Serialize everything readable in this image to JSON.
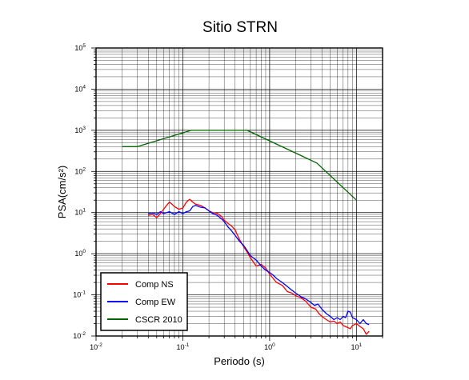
{
  "chart_data": {
    "type": "line",
    "title": "Sitio STRN",
    "xlabel": "Periodo (s)",
    "ylabel": "PSA(cm/s²)",
    "xscale": "log",
    "yscale": "log",
    "xlim": [
      0.01,
      20
    ],
    "ylim": [
      0.01,
      100000
    ],
    "grid": true,
    "legend_position": "bottom-left",
    "x_ticks": [
      {
        "base": "10",
        "exp": "-2"
      },
      {
        "base": "10",
        "exp": "-1"
      },
      {
        "base": "10",
        "exp": "0"
      },
      {
        "base": "10",
        "exp": "1"
      }
    ],
    "y_ticks": [
      {
        "base": "10",
        "exp": "-2"
      },
      {
        "base": "10",
        "exp": "-1"
      },
      {
        "base": "10",
        "exp": "0"
      },
      {
        "base": "10",
        "exp": "1"
      },
      {
        "base": "10",
        "exp": "2"
      },
      {
        "base": "10",
        "exp": "3"
      },
      {
        "base": "10",
        "exp": "4"
      },
      {
        "base": "10",
        "exp": "5"
      }
    ],
    "series": [
      {
        "name": "Comp NS",
        "color": "#ff0000",
        "points": [
          [
            0.04,
            8.5
          ],
          [
            0.045,
            9.0
          ],
          [
            0.05,
            7.5
          ],
          [
            0.055,
            9.5
          ],
          [
            0.06,
            12
          ],
          [
            0.065,
            15
          ],
          [
            0.07,
            18
          ],
          [
            0.075,
            16
          ],
          [
            0.08,
            14
          ],
          [
            0.09,
            12
          ],
          [
            0.1,
            13
          ],
          [
            0.11,
            18
          ],
          [
            0.12,
            21
          ],
          [
            0.13,
            18
          ],
          [
            0.14,
            16
          ],
          [
            0.16,
            15
          ],
          [
            0.18,
            13
          ],
          [
            0.2,
            11
          ],
          [
            0.22,
            10
          ],
          [
            0.25,
            9.5
          ],
          [
            0.28,
            8
          ],
          [
            0.3,
            6.5
          ],
          [
            0.33,
            5.5
          ],
          [
            0.36,
            4.8
          ],
          [
            0.4,
            3.8
          ],
          [
            0.45,
            2.2
          ],
          [
            0.5,
            1.5
          ],
          [
            0.55,
            1.1
          ],
          [
            0.6,
            0.8
          ],
          [
            0.7,
            0.5
          ],
          [
            0.8,
            0.55
          ],
          [
            0.9,
            0.45
          ],
          [
            1.0,
            0.32
          ],
          [
            1.1,
            0.25
          ],
          [
            1.2,
            0.2
          ],
          [
            1.4,
            0.17
          ],
          [
            1.6,
            0.12
          ],
          [
            1.8,
            0.11
          ],
          [
            2.0,
            0.095
          ],
          [
            2.3,
            0.085
          ],
          [
            2.6,
            0.07
          ],
          [
            3.0,
            0.05
          ],
          [
            3.4,
            0.045
          ],
          [
            3.7,
            0.035
          ],
          [
            4.0,
            0.03
          ],
          [
            4.5,
            0.025
          ],
          [
            5.0,
            0.022
          ],
          [
            5.5,
            0.023
          ],
          [
            6.0,
            0.02
          ],
          [
            6.5,
            0.022
          ],
          [
            7.0,
            0.018
          ],
          [
            8.0,
            0.016
          ],
          [
            8.5,
            0.015
          ],
          [
            9.0,
            0.018
          ],
          [
            10.0,
            0.02
          ],
          [
            11.0,
            0.017
          ],
          [
            12.0,
            0.015
          ],
          [
            13.0,
            0.011
          ],
          [
            14.0,
            0.013
          ]
        ]
      },
      {
        "name": "Comp EW",
        "color": "#0000ff",
        "points": [
          [
            0.04,
            9.5
          ],
          [
            0.045,
            9.8
          ],
          [
            0.05,
            9.0
          ],
          [
            0.055,
            10.5
          ],
          [
            0.06,
            9.5
          ],
          [
            0.07,
            10.5
          ],
          [
            0.08,
            9.0
          ],
          [
            0.09,
            10.5
          ],
          [
            0.1,
            9.5
          ],
          [
            0.11,
            10.5
          ],
          [
            0.12,
            11
          ],
          [
            0.13,
            14
          ],
          [
            0.14,
            15
          ],
          [
            0.16,
            13.5
          ],
          [
            0.18,
            13
          ],
          [
            0.2,
            11
          ],
          [
            0.22,
            9.5
          ],
          [
            0.25,
            8.5
          ],
          [
            0.28,
            7
          ],
          [
            0.3,
            6
          ],
          [
            0.33,
            4.5
          ],
          [
            0.36,
            3.7
          ],
          [
            0.4,
            2.8
          ],
          [
            0.45,
            2.0
          ],
          [
            0.5,
            1.6
          ],
          [
            0.55,
            1.2
          ],
          [
            0.6,
            0.9
          ],
          [
            0.7,
            0.7
          ],
          [
            0.8,
            0.5
          ],
          [
            0.9,
            0.4
          ],
          [
            1.0,
            0.35
          ],
          [
            1.1,
            0.3
          ],
          [
            1.2,
            0.25
          ],
          [
            1.4,
            0.2
          ],
          [
            1.6,
            0.16
          ],
          [
            1.8,
            0.13
          ],
          [
            2.0,
            0.11
          ],
          [
            2.3,
            0.09
          ],
          [
            2.6,
            0.08
          ],
          [
            3.0,
            0.065
          ],
          [
            3.3,
            0.055
          ],
          [
            3.6,
            0.06
          ],
          [
            4.0,
            0.045
          ],
          [
            4.5,
            0.035
          ],
          [
            5.0,
            0.03
          ],
          [
            5.5,
            0.025
          ],
          [
            6.0,
            0.028
          ],
          [
            6.5,
            0.025
          ],
          [
            7.0,
            0.03
          ],
          [
            7.5,
            0.028
          ],
          [
            8.0,
            0.04
          ],
          [
            8.5,
            0.038
          ],
          [
            9.0,
            0.028
          ],
          [
            10.0,
            0.025
          ],
          [
            11.0,
            0.02
          ],
          [
            12.0,
            0.025
          ],
          [
            13.0,
            0.02
          ],
          [
            14.0,
            0.019
          ]
        ]
      },
      {
        "name": "CSCR 2010",
        "color": "#006400",
        "points": [
          [
            0.02,
            400
          ],
          [
            0.03,
            400
          ],
          [
            0.125,
            1000
          ],
          [
            0.55,
            1000
          ],
          [
            3.5,
            160
          ],
          [
            10.0,
            20
          ]
        ]
      }
    ]
  }
}
